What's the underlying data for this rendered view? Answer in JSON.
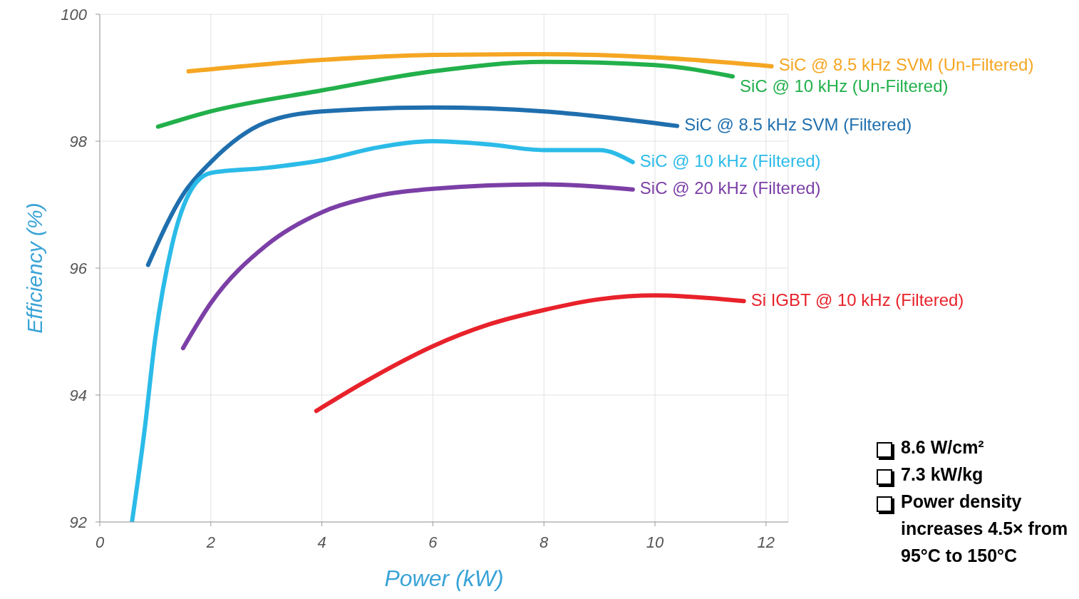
{
  "chart_data": {
    "type": "line",
    "xlabel": "Power (kW)",
    "ylabel": "Efficiency (%)",
    "xlim": [
      0,
      12.4
    ],
    "xticks": [
      0,
      2,
      4,
      6,
      8,
      10,
      12
    ],
    "ylim": [
      92,
      100
    ],
    "yticks": [
      92,
      94,
      96,
      98,
      100
    ],
    "grid": true,
    "marker": "none",
    "line_style": "solid",
    "series": [
      {
        "name": "SiC @ 8.5 kHz SVM (Un-Filtered)",
        "color": "#f5a623",
        "x": [
          1.6,
          4,
          6,
          8,
          10,
          12.1
        ],
        "values": [
          99.1,
          99.28,
          99.36,
          99.37,
          99.32,
          99.18
        ]
      },
      {
        "name": "SiC @ 10 kHz (Un-Filtered)",
        "color": "#22b04b",
        "x": [
          1.05,
          2,
          4,
          6,
          8,
          10,
          11.4
        ],
        "values": [
          98.23,
          98.47,
          98.8,
          99.1,
          99.25,
          99.2,
          99.02
        ]
      },
      {
        "name": "SiC @ 8.5 kHz SVM (Filtered)",
        "color": "#1f6fae",
        "x": [
          0.87,
          1.5,
          2,
          3,
          4,
          6,
          8,
          10.4
        ],
        "values": [
          96.05,
          97.16,
          97.67,
          98.3,
          98.47,
          98.53,
          98.47,
          98.24
        ]
      },
      {
        "name": "SiC @ 10 kHz (Filtered)",
        "color": "#2bbbe8",
        "x": [
          0.58,
          0.8,
          1,
          1.3,
          1.6,
          2,
          3,
          4,
          5,
          6,
          7,
          8,
          9,
          9.6
        ],
        "values": [
          92,
          93.4,
          94.9,
          96.36,
          97.16,
          97.5,
          97.58,
          97.7,
          97.9,
          98,
          97.95,
          97.86,
          97.86,
          97.67
        ]
      },
      {
        "name": "SiC @ 20 kHz (Filtered)",
        "color": "#7b3fa6",
        "x": [
          1.5,
          2,
          3,
          4,
          5,
          6,
          8,
          9.6
        ],
        "values": [
          94.74,
          95.45,
          96.36,
          96.88,
          97.14,
          97.25,
          97.32,
          97.24
        ]
      },
      {
        "name": "Si IGBT @ 10 kHz (Filtered)",
        "color": "#e8222b",
        "x": [
          3.9,
          5,
          6,
          7,
          8,
          9,
          10,
          11.6
        ],
        "values": [
          93.75,
          94.32,
          94.77,
          95.11,
          95.34,
          95.51,
          95.57,
          95.48
        ]
      }
    ],
    "annotations": [
      "8.6 W/cm²",
      "7.3 kW/kg",
      "Power density increases 4.5× from 95°C to 150°C"
    ]
  }
}
